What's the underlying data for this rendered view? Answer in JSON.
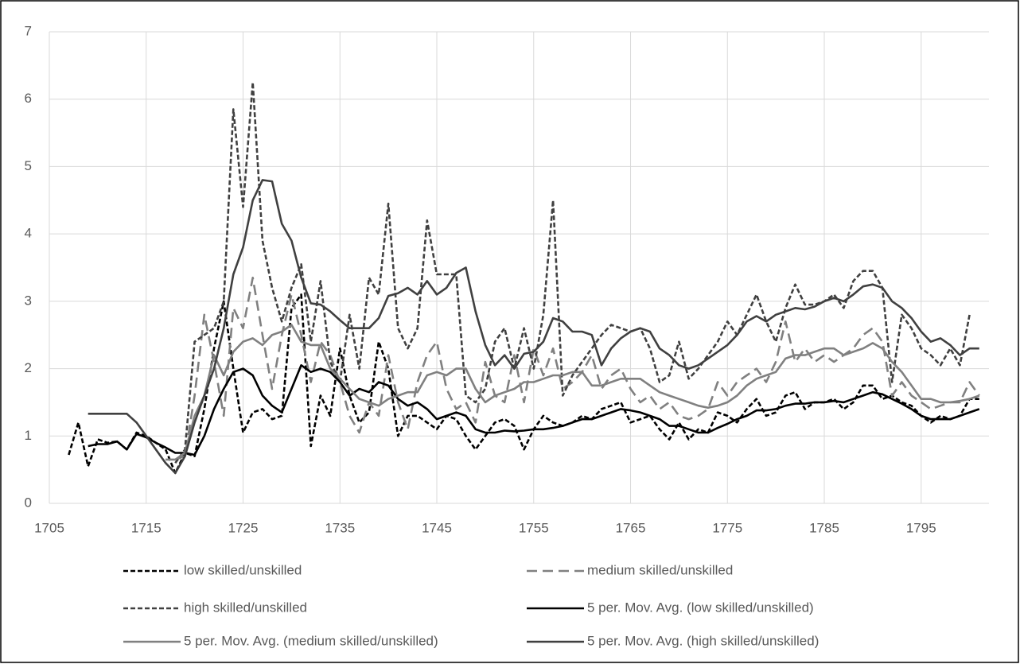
{
  "chart_data": {
    "type": "line",
    "x": [
      1707,
      1708,
      1709,
      1710,
      1711,
      1712,
      1713,
      1714,
      1715,
      1716,
      1717,
      1718,
      1719,
      1720,
      1721,
      1722,
      1723,
      1724,
      1725,
      1726,
      1727,
      1728,
      1729,
      1730,
      1731,
      1732,
      1733,
      1734,
      1735,
      1736,
      1737,
      1738,
      1739,
      1740,
      1741,
      1742,
      1743,
      1744,
      1745,
      1746,
      1747,
      1748,
      1749,
      1750,
      1751,
      1752,
      1753,
      1754,
      1755,
      1756,
      1757,
      1758,
      1759,
      1760,
      1761,
      1762,
      1763,
      1764,
      1765,
      1766,
      1767,
      1768,
      1769,
      1770,
      1771,
      1772,
      1773,
      1774,
      1775,
      1776,
      1777,
      1778,
      1779,
      1780,
      1781,
      1782,
      1783,
      1784,
      1785,
      1786,
      1787,
      1788,
      1789,
      1790,
      1791,
      1792,
      1793,
      1794,
      1795,
      1796,
      1797,
      1798,
      1799,
      1800,
      1801
    ],
    "series": [
      {
        "name": "low skilled/unskilled",
        "color": "#000000",
        "style": "dashed",
        "values": [
          0.72,
          1.2,
          0.55,
          0.95,
          0.9,
          0.92,
          0.8,
          1.05,
          1.0,
          0.9,
          0.8,
          0.45,
          0.75,
          0.7,
          1.4,
          2.3,
          3.0,
          2.0,
          1.05,
          1.35,
          1.4,
          1.25,
          1.3,
          2.9,
          3.1,
          0.85,
          1.6,
          1.3,
          2.3,
          1.6,
          1.2,
          1.35,
          2.4,
          2.0,
          1.0,
          1.3,
          1.3,
          1.2,
          1.1,
          1.3,
          1.25,
          1.0,
          0.8,
          1.0,
          1.2,
          1.25,
          1.15,
          0.8,
          1.1,
          1.3,
          1.2,
          1.15,
          1.2,
          1.3,
          1.25,
          1.4,
          1.45,
          1.5,
          1.2,
          1.25,
          1.3,
          1.1,
          0.95,
          1.2,
          0.95,
          1.1,
          1.05,
          1.35,
          1.3,
          1.2,
          1.4,
          1.55,
          1.3,
          1.35,
          1.6,
          1.65,
          1.4,
          1.5,
          1.5,
          1.55,
          1.4,
          1.5,
          1.75,
          1.75,
          1.55,
          1.6,
          1.5,
          1.45,
          1.3,
          1.2,
          1.3,
          1.25,
          1.3,
          1.55,
          1.55
        ]
      },
      {
        "name": "medium skilled/unskilled",
        "color": "#808080",
        "style": "long-dash",
        "values": [
          null,
          null,
          null,
          null,
          null,
          null,
          null,
          null,
          null,
          null,
          null,
          0.65,
          0.7,
          1.6,
          2.8,
          2.1,
          1.3,
          2.9,
          2.6,
          3.35,
          2.5,
          1.7,
          2.5,
          3.1,
          2.5,
          1.8,
          2.4,
          2.2,
          1.8,
          1.3,
          1.05,
          1.5,
          1.3,
          2.2,
          1.5,
          1.1,
          1.8,
          2.2,
          2.4,
          1.7,
          1.4,
          1.5,
          1.2,
          2.1,
          1.6,
          1.5,
          2.2,
          1.5,
          2.3,
          1.9,
          2.3,
          1.7,
          1.8,
          1.95,
          2.2,
          1.7,
          1.9,
          2.0,
          1.7,
          1.5,
          1.6,
          1.4,
          1.5,
          1.3,
          1.25,
          1.3,
          1.4,
          1.8,
          1.6,
          1.8,
          1.9,
          2.0,
          1.8,
          2.1,
          2.7,
          2.1,
          2.3,
          2.1,
          2.2,
          2.1,
          2.2,
          2.3,
          2.5,
          2.6,
          2.4,
          1.6,
          1.8,
          1.6,
          1.5,
          1.4,
          1.45,
          1.5,
          1.5,
          1.8,
          1.6
        ]
      },
      {
        "name": "high skilled/unskilled",
        "color": "#404040",
        "style": "dashed",
        "values": [
          null,
          null,
          null,
          null,
          null,
          null,
          null,
          null,
          null,
          null,
          null,
          0.6,
          0.8,
          2.4,
          2.5,
          2.6,
          3.0,
          5.85,
          4.4,
          6.25,
          3.9,
          3.2,
          2.7,
          3.2,
          3.55,
          2.4,
          3.3,
          2.1,
          1.8,
          2.8,
          2.0,
          3.35,
          3.1,
          4.45,
          2.6,
          2.3,
          2.6,
          4.2,
          3.4,
          3.4,
          3.4,
          1.6,
          1.5,
          1.7,
          2.4,
          2.6,
          2.0,
          2.6,
          2.0,
          2.8,
          4.5,
          1.6,
          1.9,
          2.1,
          2.3,
          2.5,
          2.65,
          2.6,
          2.55,
          2.6,
          2.3,
          1.8,
          1.9,
          2.4,
          1.85,
          2.0,
          2.2,
          2.4,
          2.7,
          2.5,
          2.8,
          3.1,
          2.7,
          2.4,
          2.9,
          3.25,
          2.95,
          2.95,
          3.0,
          3.1,
          2.9,
          3.3,
          3.45,
          3.45,
          3.2,
          1.8,
          2.8,
          2.6,
          2.3,
          2.2,
          2.05,
          2.3,
          2.05,
          2.8,
          null
        ]
      },
      {
        "name": "5 per. Mov. Avg. (low skilled/unskilled)",
        "color": "#000000",
        "style": "solid",
        "values": [
          null,
          null,
          0.85,
          0.88,
          0.88,
          0.92,
          0.8,
          1.03,
          0.98,
          0.9,
          0.83,
          0.75,
          0.75,
          0.72,
          1.0,
          1.4,
          1.7,
          1.95,
          2.0,
          1.9,
          1.6,
          1.45,
          1.35,
          1.7,
          2.05,
          1.95,
          2.0,
          1.95,
          1.8,
          1.6,
          1.7,
          1.65,
          1.8,
          1.75,
          1.55,
          1.45,
          1.5,
          1.4,
          1.25,
          1.3,
          1.35,
          1.3,
          1.1,
          1.05,
          1.05,
          1.08,
          1.07,
          1.08,
          1.1,
          1.1,
          1.12,
          1.15,
          1.2,
          1.25,
          1.25,
          1.3,
          1.35,
          1.4,
          1.38,
          1.35,
          1.3,
          1.25,
          1.15,
          1.15,
          1.1,
          1.05,
          1.05,
          1.12,
          1.18,
          1.25,
          1.3,
          1.38,
          1.38,
          1.4,
          1.45,
          1.48,
          1.48,
          1.5,
          1.5,
          1.52,
          1.5,
          1.55,
          1.6,
          1.65,
          1.62,
          1.55,
          1.48,
          1.4,
          1.3,
          1.25,
          1.25,
          1.25,
          1.3,
          1.35,
          1.4
        ]
      },
      {
        "name": "5 per. Mov. Avg. (medium skilled/unskilled)",
        "color": "#808080",
        "style": "solid",
        "values": [
          null,
          null,
          null,
          null,
          null,
          null,
          null,
          null,
          null,
          null,
          0.65,
          0.65,
          0.75,
          1.3,
          1.6,
          2.2,
          1.9,
          2.25,
          2.4,
          2.45,
          2.35,
          2.5,
          2.55,
          2.65,
          2.4,
          2.35,
          2.35,
          2.0,
          1.85,
          1.7,
          1.55,
          1.5,
          1.45,
          1.55,
          1.6,
          1.65,
          1.65,
          1.9,
          1.95,
          1.9,
          2.0,
          2.0,
          1.7,
          1.5,
          1.6,
          1.65,
          1.7,
          1.8,
          1.8,
          1.85,
          1.9,
          1.9,
          1.95,
          1.95,
          1.75,
          1.75,
          1.8,
          1.85,
          1.85,
          1.85,
          1.75,
          1.65,
          1.6,
          1.55,
          1.5,
          1.45,
          1.42,
          1.45,
          1.5,
          1.6,
          1.75,
          1.85,
          1.9,
          1.95,
          2.15,
          2.2,
          2.2,
          2.25,
          2.3,
          2.3,
          2.2,
          2.25,
          2.3,
          2.38,
          2.3,
          2.1,
          1.95,
          1.75,
          1.55,
          1.55,
          1.5,
          1.5,
          1.52,
          1.55,
          1.6
        ]
      },
      {
        "name": "5 per. Mov. Avg. (high skilled/unskilled)",
        "color": "#404040",
        "style": "solid",
        "values": [
          null,
          null,
          1.33,
          1.33,
          1.33,
          1.33,
          1.33,
          1.2,
          1.0,
          0.8,
          0.6,
          0.45,
          0.7,
          1.2,
          1.6,
          2.0,
          2.6,
          3.4,
          3.8,
          4.5,
          4.8,
          4.78,
          4.15,
          3.9,
          3.35,
          2.97,
          2.95,
          2.85,
          2.72,
          2.6,
          2.6,
          2.6,
          2.75,
          3.08,
          3.12,
          3.2,
          3.1,
          3.3,
          3.1,
          3.2,
          3.42,
          3.5,
          2.85,
          2.35,
          2.05,
          2.2,
          2.0,
          2.22,
          2.25,
          2.4,
          2.75,
          2.7,
          2.55,
          2.55,
          2.5,
          2.05,
          2.3,
          2.45,
          2.55,
          2.6,
          2.55,
          2.3,
          2.2,
          2.05,
          2.0,
          2.05,
          2.15,
          2.25,
          2.35,
          2.5,
          2.7,
          2.78,
          2.7,
          2.8,
          2.85,
          2.9,
          2.88,
          2.92,
          3.0,
          3.05,
          3.0,
          3.1,
          3.22,
          3.25,
          3.2,
          3.0,
          2.9,
          2.75,
          2.55,
          2.4,
          2.45,
          2.35,
          2.2,
          2.3,
          2.3
        ]
      }
    ],
    "xlim": [
      1705,
      1802
    ],
    "xticks": [
      1705,
      1715,
      1725,
      1735,
      1745,
      1755,
      1765,
      1775,
      1785,
      1795
    ],
    "ylim": [
      0,
      7
    ],
    "yticks": [
      0,
      1,
      2,
      3,
      4,
      5,
      6,
      7
    ],
    "grid": true,
    "legend": "bottom"
  }
}
